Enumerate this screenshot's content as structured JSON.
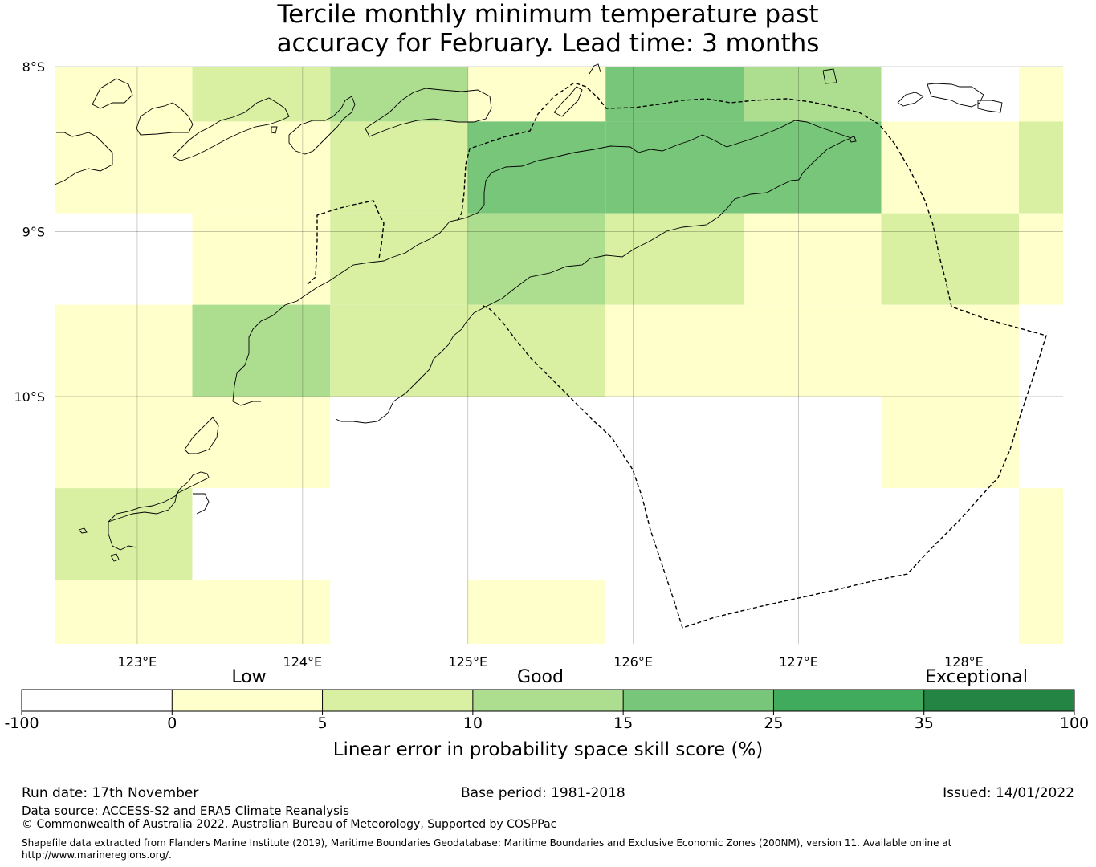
{
  "title": {
    "line1": "Tercile monthly minimum temperature past",
    "line2": "accuracy for February. Lead time: 3 months"
  },
  "map": {
    "lat_labels": [
      "8°S",
      "9°S",
      "10°S"
    ],
    "lon_labels": [
      "123°E",
      "124°E",
      "125°E",
      "126°E",
      "127°E",
      "128°E"
    ],
    "lat_values": [
      -8,
      -9,
      -10
    ],
    "lon_values": [
      123,
      124,
      125,
      126,
      127,
      128
    ],
    "extent": {
      "lon_min": 122.5,
      "lon_max": 128.6,
      "lat_min": -11.5,
      "lat_max": -8
    },
    "grid_cell_deg": 0.833,
    "cell_lon_edges": [
      122.5,
      123.333,
      124.167,
      125.0,
      125.833,
      126.667,
      127.5,
      128.333,
      128.6
    ],
    "cell_lat_edges": [
      -8.0,
      -8.333,
      -8.889,
      -9.444,
      -10.0,
      -10.556,
      -11.111,
      -11.5
    ],
    "cells": [
      [
        1,
        2,
        3,
        1,
        4,
        3,
        0,
        1
      ],
      [
        1,
        1,
        2,
        4,
        4,
        4,
        1,
        2
      ],
      [
        0,
        1,
        2,
        3,
        2,
        1,
        2,
        1
      ],
      [
        1,
        3,
        2,
        2,
        1,
        1,
        1,
        0
      ],
      [
        1,
        1,
        0,
        0,
        0,
        0,
        1,
        0
      ],
      [
        2,
        0,
        0,
        0,
        0,
        0,
        0,
        1
      ],
      [
        1,
        1,
        0,
        1,
        0,
        0,
        0,
        1
      ]
    ]
  },
  "colorbar": {
    "category_labels": [
      "Low",
      "Good",
      "Exceptional"
    ],
    "ticks": [
      "-100",
      "0",
      "5",
      "10",
      "15",
      "25",
      "35",
      "100"
    ],
    "colors": [
      "#ffffff",
      "#ffffcc",
      "#d9f0a3",
      "#addd8e",
      "#78c679",
      "#41ab5d",
      "#238443"
    ],
    "axis_label": "Linear error in probability space skill score (%)"
  },
  "footer": {
    "run_date": "Run date: 17th November",
    "base_period": "Base period: 1981-2018",
    "issued": "Issued: 14/01/2022",
    "data_source": "Data source: ACCESS-S2 and ERA5 Climate Reanalysis",
    "copyright": "© Commonwealth of Australia 2022, Australian Bureau of Meteorology, Supported by COSPPac",
    "shapefile_line1": "Shapefile data extracted from Flanders Marine Institute (2019), Maritime Boundaries Geodatabase: Maritime Boundaries and Exclusive Economic Zones (200NM), version 11. Available online at",
    "shapefile_line2": "http://www.marineregions.org/."
  }
}
